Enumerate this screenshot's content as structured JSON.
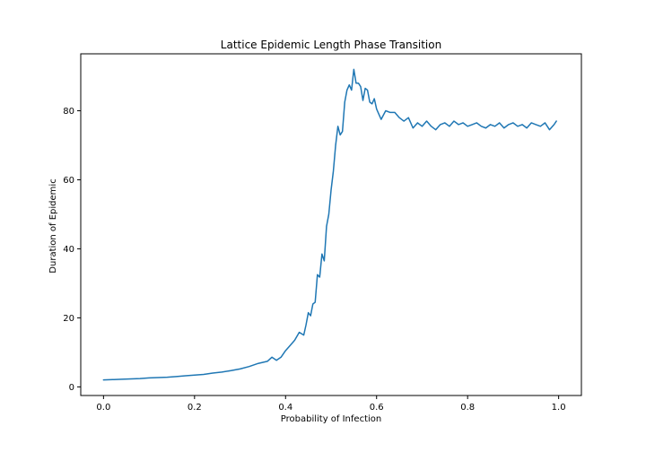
{
  "chart_data": {
    "type": "line",
    "title": "Lattice Epidemic Length Phase Transition",
    "xlabel": "Probability of Infection",
    "ylabel": "Duration of Epidemic",
    "xlim": [
      -0.05,
      1.05
    ],
    "ylim": [
      -2.5,
      96.5
    ],
    "xticks": [
      0.0,
      0.2,
      0.4,
      0.6,
      0.8,
      1.0
    ],
    "xtick_labels": [
      "0.0",
      "0.2",
      "0.4",
      "0.6",
      "0.8",
      "1.0"
    ],
    "yticks": [
      0,
      20,
      40,
      60,
      80
    ],
    "ytick_labels": [
      "0",
      "20",
      "40",
      "60",
      "80"
    ],
    "grid": false,
    "line_color": "#1f77b4",
    "series": [
      {
        "x": [
          0.0,
          0.02,
          0.04,
          0.06,
          0.08,
          0.1,
          0.12,
          0.14,
          0.16,
          0.18,
          0.2,
          0.22,
          0.24,
          0.26,
          0.28,
          0.3,
          0.32,
          0.34,
          0.36,
          0.37,
          0.38,
          0.39,
          0.4,
          0.41,
          0.42,
          0.43,
          0.44,
          0.445,
          0.45,
          0.455,
          0.46,
          0.465,
          0.47,
          0.475,
          0.48,
          0.485,
          0.49,
          0.495,
          0.5,
          0.505,
          0.51,
          0.515,
          0.52,
          0.525,
          0.53,
          0.535,
          0.54,
          0.545,
          0.55,
          0.555,
          0.56,
          0.565,
          0.57,
          0.575,
          0.58,
          0.585,
          0.59,
          0.595,
          0.6,
          0.61,
          0.62,
          0.63,
          0.64,
          0.65,
          0.66,
          0.67,
          0.68,
          0.69,
          0.7,
          0.71,
          0.72,
          0.73,
          0.74,
          0.75,
          0.76,
          0.77,
          0.78,
          0.79,
          0.8,
          0.81,
          0.82,
          0.83,
          0.84,
          0.85,
          0.86,
          0.87,
          0.88,
          0.89,
          0.9,
          0.91,
          0.92,
          0.93,
          0.94,
          0.95,
          0.96,
          0.97,
          0.98,
          0.99,
          0.995
        ],
        "y": [
          2.0,
          2.1,
          2.2,
          2.3,
          2.4,
          2.6,
          2.7,
          2.8,
          3.0,
          3.2,
          3.4,
          3.6,
          4.0,
          4.3,
          4.7,
          5.2,
          5.9,
          6.8,
          7.4,
          8.6,
          7.7,
          8.6,
          10.5,
          12.0,
          13.5,
          15.8,
          15.0,
          18.0,
          21.5,
          20.6,
          24.0,
          24.5,
          32.5,
          31.8,
          38.5,
          36.5,
          46.5,
          50.0,
          57.0,
          62.5,
          70.0,
          75.5,
          73.0,
          74.0,
          82.5,
          86.0,
          87.5,
          86.0,
          92.0,
          88.0,
          88.0,
          87.0,
          83.0,
          86.5,
          86.0,
          82.5,
          82.0,
          83.5,
          80.5,
          77.5,
          80.0,
          79.5,
          79.5,
          78.0,
          77.0,
          78.0,
          75.0,
          76.5,
          75.5,
          77.0,
          75.5,
          74.5,
          76.0,
          76.5,
          75.5,
          77.0,
          76.0,
          76.5,
          75.5,
          76.0,
          76.5,
          75.5,
          75.0,
          76.0,
          75.5,
          76.5,
          75.0,
          76.0,
          76.5,
          75.5,
          76.0,
          75.0,
          76.5,
          76.0,
          75.5,
          76.5,
          74.5,
          76.0,
          77.0
        ]
      }
    ]
  }
}
